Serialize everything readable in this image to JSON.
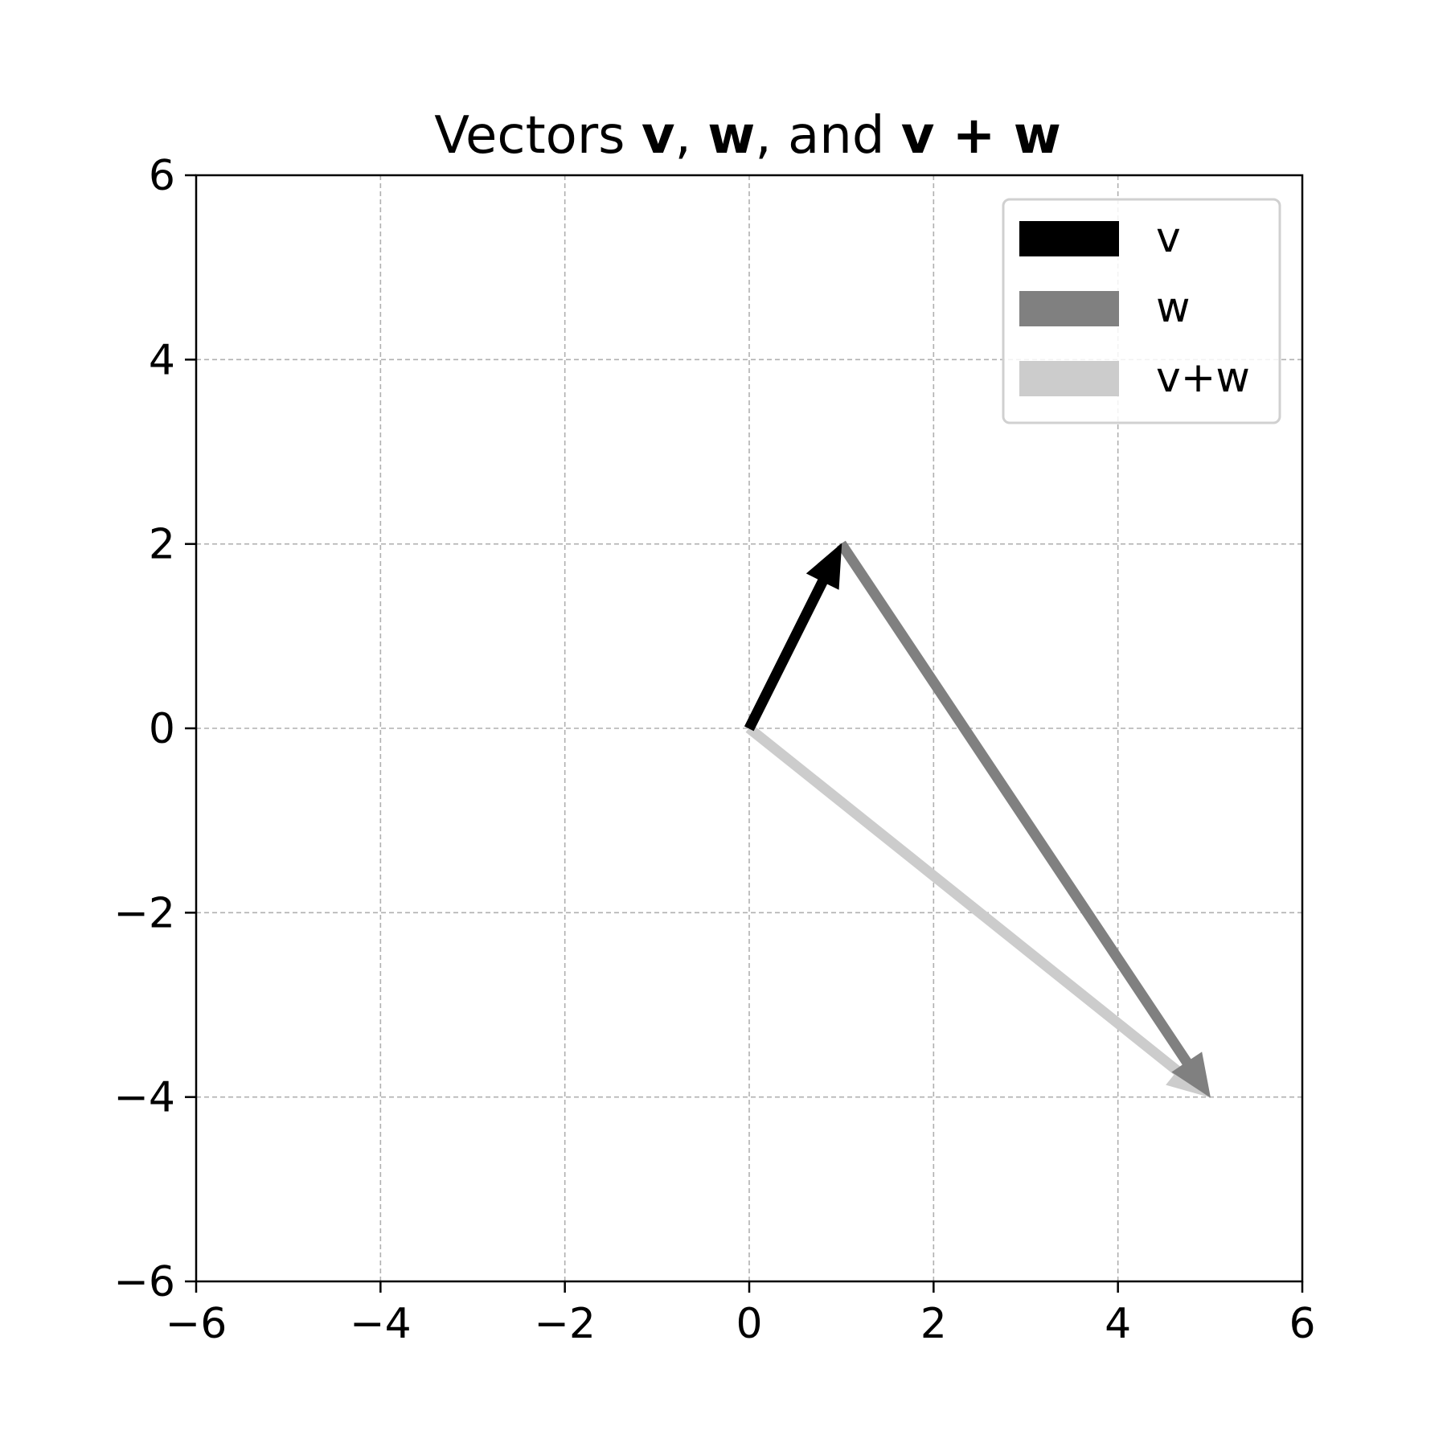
{
  "chart_data": {
    "type": "vector",
    "title": {
      "parts": [
        {
          "text": "Vectors ",
          "bold": false
        },
        {
          "text": "v",
          "bold": true
        },
        {
          "text": ", ",
          "bold": false
        },
        {
          "text": "w",
          "bold": true
        },
        {
          "text": ", and ",
          "bold": false
        },
        {
          "text": "v + w",
          "bold": true
        }
      ]
    },
    "xlim": [
      -6,
      6
    ],
    "ylim": [
      -6,
      6
    ],
    "xticks": [
      -6,
      -4,
      -2,
      0,
      2,
      4,
      6
    ],
    "yticks": [
      -6,
      -4,
      -2,
      0,
      2,
      4,
      6
    ],
    "xtick_labels": [
      "−6",
      "−4",
      "−2",
      "0",
      "2",
      "4",
      "6"
    ],
    "ytick_labels": [
      "−6",
      "−4",
      "−2",
      "0",
      "2",
      "4",
      "6"
    ],
    "grid": true,
    "legend_position": "top-right",
    "series": [
      {
        "name": "v",
        "start": [
          0,
          0
        ],
        "end": [
          1,
          2
        ],
        "color": "#000000"
      },
      {
        "name": "w",
        "start": [
          1,
          2
        ],
        "end": [
          5,
          -4
        ],
        "color": "#808080"
      },
      {
        "name": "v+w",
        "start": [
          0,
          0
        ],
        "end": [
          5,
          -4
        ],
        "color": "#cccccc"
      }
    ]
  }
}
